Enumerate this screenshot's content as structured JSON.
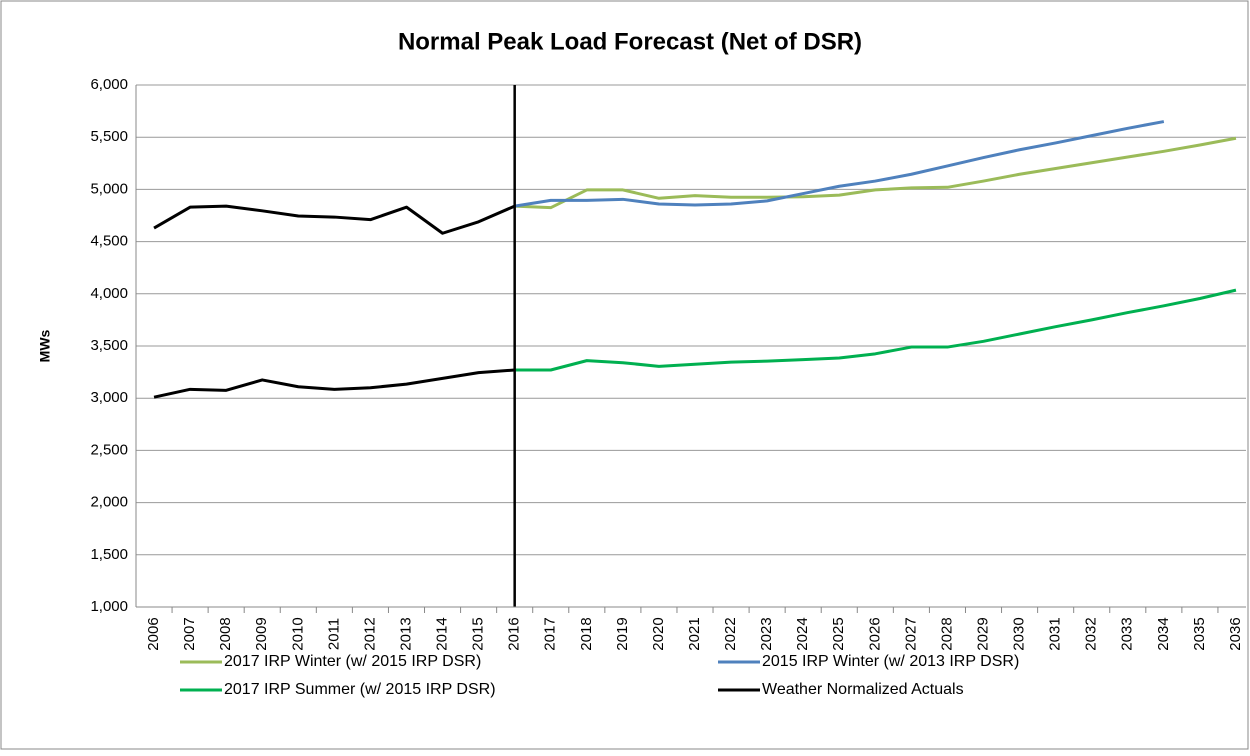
{
  "chart_data": {
    "type": "line",
    "title": "Normal Peak Load Forecast (Net of DSR)",
    "y_label": "MWs",
    "x": [
      2006,
      2007,
      2008,
      2009,
      2010,
      2011,
      2012,
      2013,
      2014,
      2015,
      2016,
      2017,
      2018,
      2019,
      2020,
      2021,
      2022,
      2023,
      2024,
      2025,
      2026,
      2027,
      2028,
      2029,
      2030,
      2031,
      2032,
      2033,
      2034,
      2035,
      2036
    ],
    "series": [
      {
        "name": "2017 IRP Winter (w/ 2015 IRP DSR)",
        "color": "#9bbb59",
        "values": [
          null,
          null,
          null,
          null,
          null,
          null,
          null,
          null,
          null,
          null,
          4840,
          4825,
          4995,
          4995,
          4915,
          4940,
          4925,
          4925,
          4930,
          4945,
          4995,
          5015,
          5020,
          5080,
          5145,
          5200,
          5255,
          5310,
          5365,
          5425,
          5490
        ]
      },
      {
        "name": "2015 IRP Winter (w/ 2013 IRP DSR)",
        "color": "#4f81bd",
        "values": [
          null,
          null,
          null,
          null,
          null,
          null,
          null,
          null,
          null,
          null,
          4840,
          4895,
          4895,
          4905,
          4860,
          4850,
          4860,
          4890,
          4960,
          5030,
          5080,
          5145,
          5225,
          5305,
          5380,
          5445,
          5515,
          5585,
          5650,
          null,
          null
        ]
      },
      {
        "name": "2017 IRP Summer (w/ 2015 IRP DSR)",
        "color": "#00b050",
        "values": [
          null,
          null,
          null,
          null,
          null,
          null,
          null,
          null,
          null,
          null,
          3270,
          3270,
          3360,
          3340,
          3305,
          3325,
          3345,
          3355,
          3370,
          3385,
          3425,
          3490,
          3490,
          3545,
          3615,
          3685,
          3750,
          3820,
          3885,
          3955,
          4035
        ]
      },
      {
        "name": "Weather Normalized Actuals",
        "color": "#000000",
        "values": [
          4630,
          4830,
          4840,
          4795,
          4745,
          4735,
          4710,
          4830,
          4580,
          4690,
          4840,
          null,
          null,
          null,
          null,
          null,
          null,
          null,
          null,
          null,
          null,
          null,
          null,
          null,
          null,
          null,
          null,
          null,
          null,
          null,
          null
        ]
      },
      {
        "color": "#000000",
        "values": [
          3010,
          3085,
          3075,
          3175,
          3110,
          3085,
          3100,
          3135,
          3190,
          3245,
          3270,
          null,
          null,
          null,
          null,
          null,
          null,
          null,
          null,
          null,
          null,
          null,
          null,
          null,
          null,
          null,
          null,
          null,
          null,
          null,
          null
        ]
      }
    ],
    "vline": 2016,
    "ylim": [
      1000,
      6000
    ],
    "yticks": [
      {
        "value": 1000,
        "label": "1,000"
      },
      {
        "value": 1500,
        "label": "1,500"
      },
      {
        "value": 2000,
        "label": "2,000"
      },
      {
        "value": 2500,
        "label": "2,500"
      },
      {
        "value": 3000,
        "label": "3,000"
      },
      {
        "value": 3500,
        "label": "3,500"
      },
      {
        "value": 4000,
        "label": "4,000"
      },
      {
        "value": 4500,
        "label": "4,500"
      },
      {
        "value": 5000,
        "label": "5,000"
      },
      {
        "value": 5500,
        "label": "5,500"
      },
      {
        "value": 6000,
        "label": "6,000"
      }
    ],
    "grid": true
  }
}
